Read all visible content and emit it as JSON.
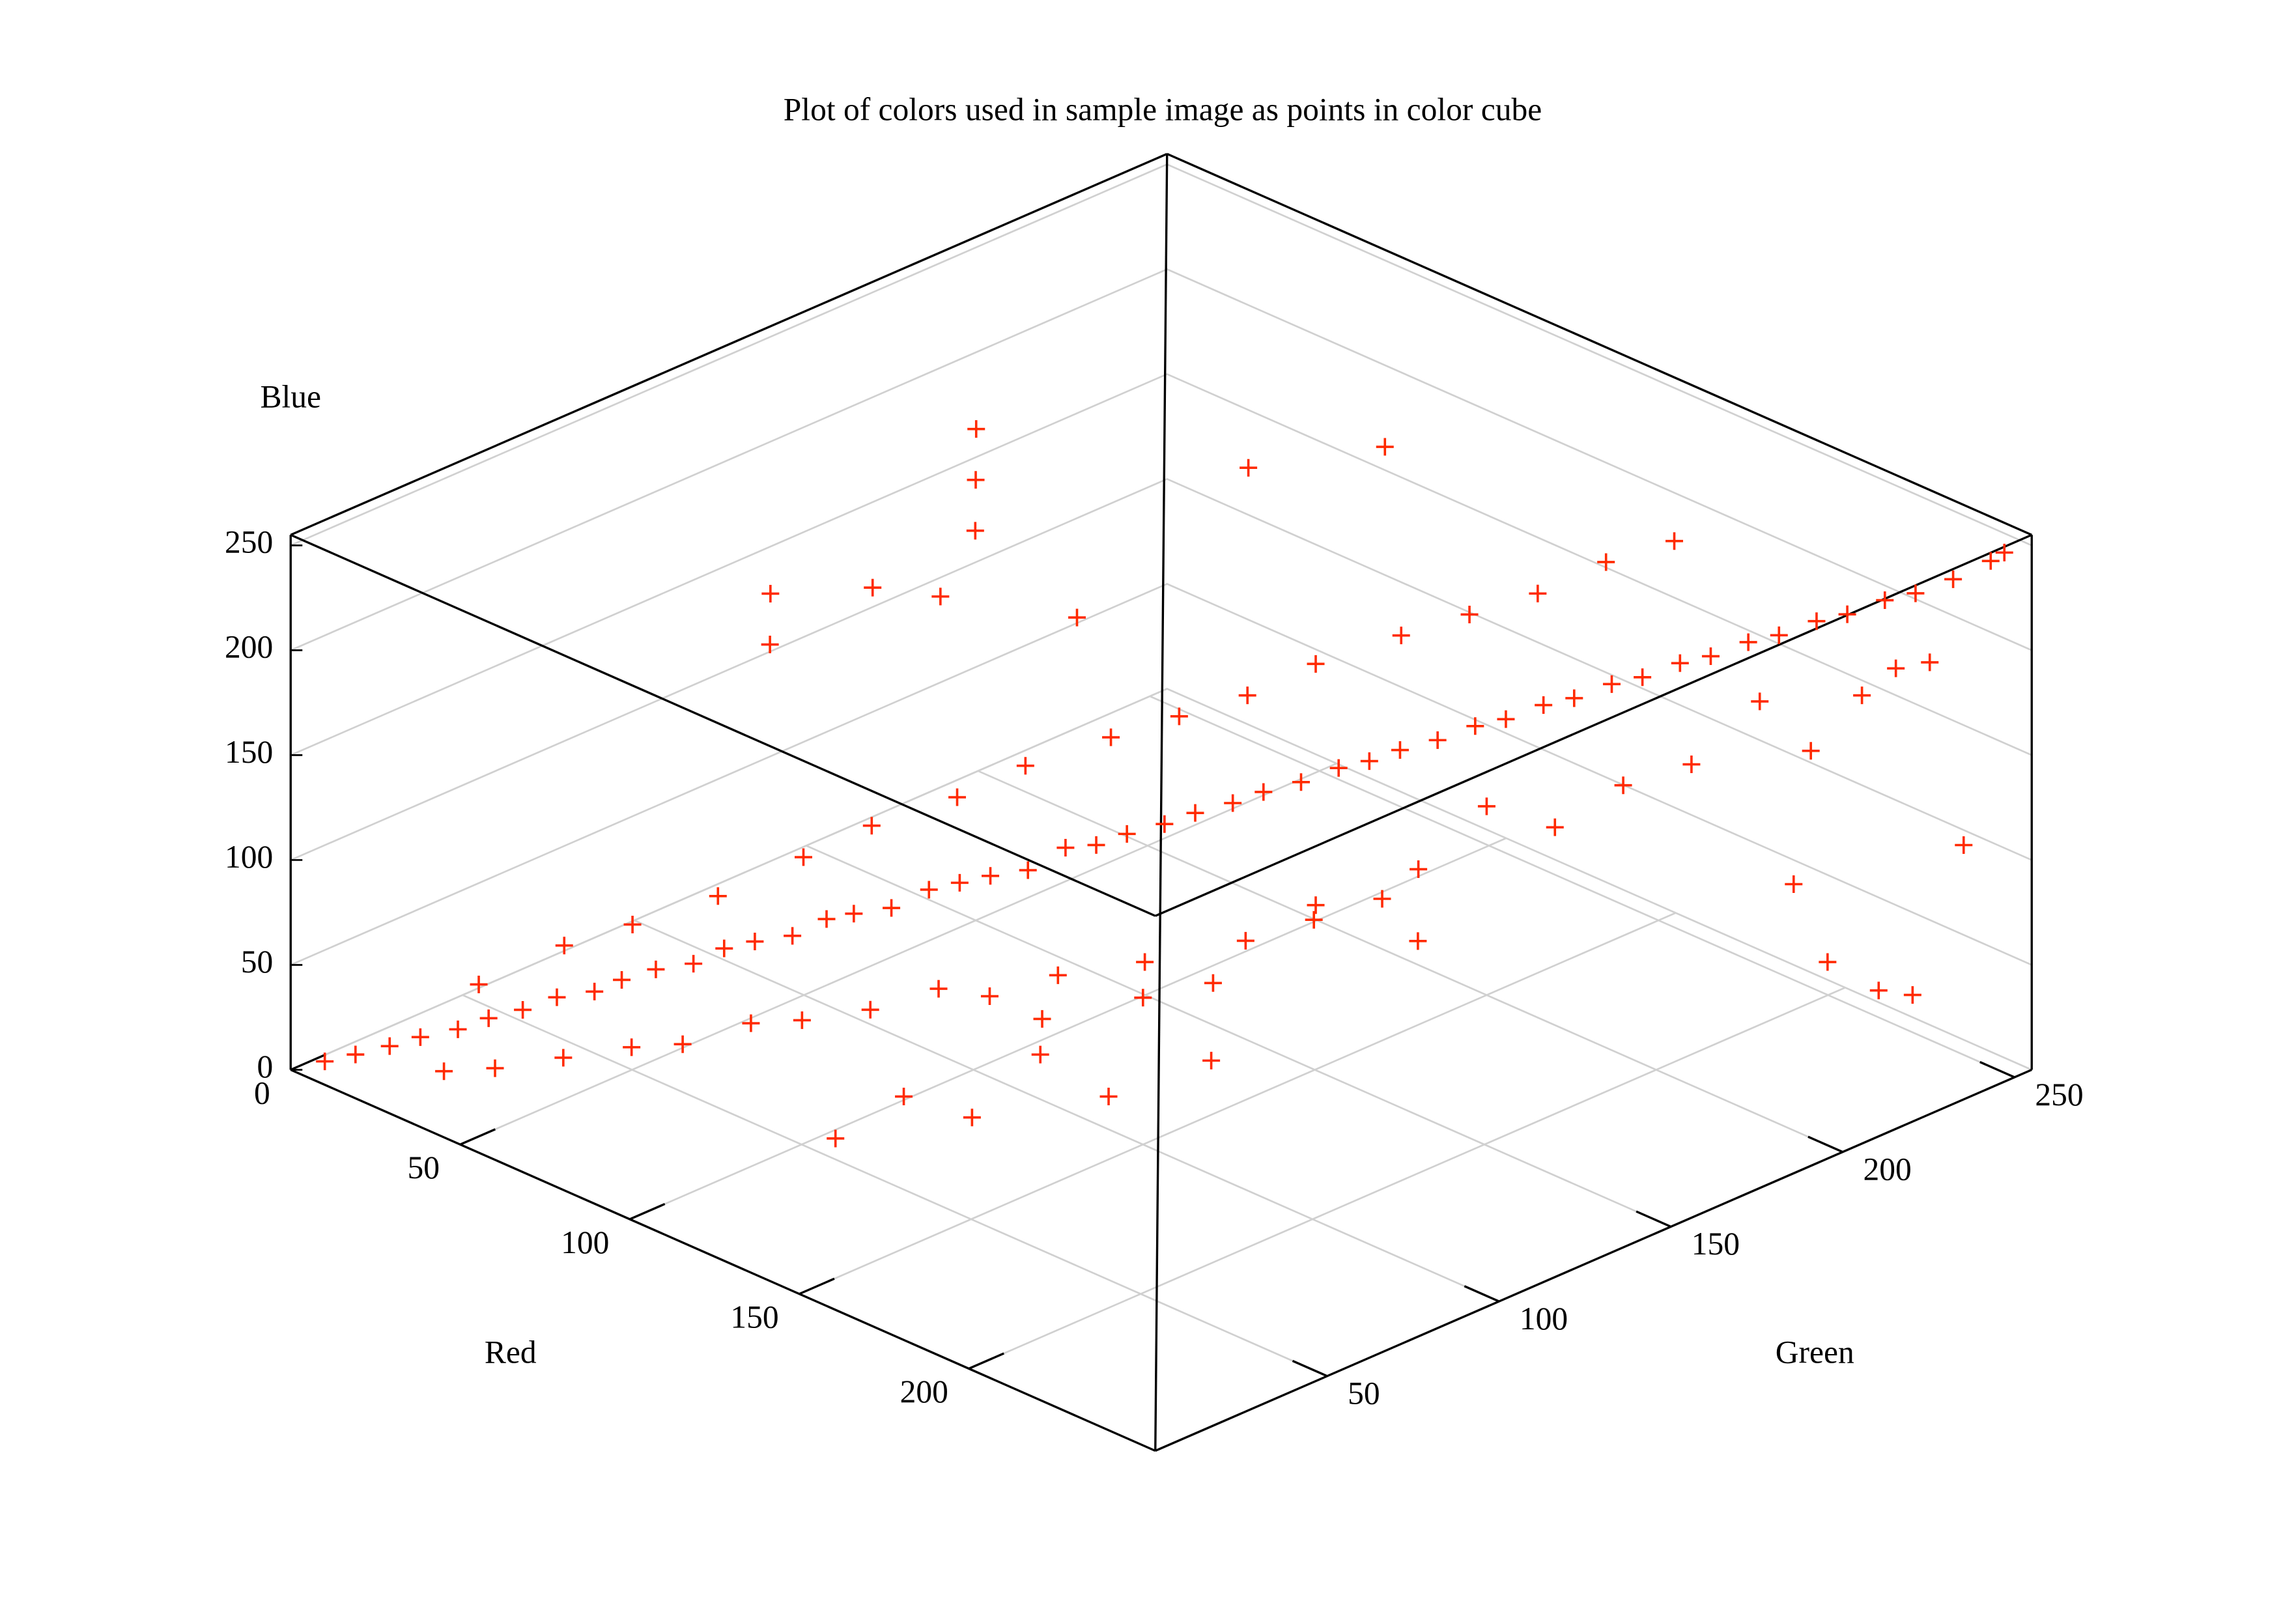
{
  "chart_data": {
    "type": "scatter3d",
    "title": "Plot of colors used in sample image as points in color cube",
    "xlabel": "Red",
    "ylabel": "Green",
    "zlabel": "Blue",
    "xlim": [
      0,
      255
    ],
    "ylim": [
      0,
      255
    ],
    "zlim": [
      0,
      255
    ],
    "xticks": [
      0,
      50,
      100,
      150,
      200
    ],
    "yticks": [
      50,
      100,
      150,
      200,
      250
    ],
    "zticks": [
      0,
      50,
      100,
      150,
      200,
      250
    ],
    "grid": true,
    "series": [
      {
        "color": "#ff2a00",
        "points": [
          [
            5,
            5,
            4
          ],
          [
            10,
            9,
            8
          ],
          [
            15,
            14,
            12
          ],
          [
            20,
            18,
            17
          ],
          [
            25,
            24,
            20
          ],
          [
            30,
            28,
            26
          ],
          [
            35,
            33,
            30
          ],
          [
            40,
            38,
            36
          ],
          [
            45,
            44,
            38
          ],
          [
            50,
            47,
            45
          ],
          [
            55,
            52,
            50
          ],
          [
            60,
            58,
            52
          ],
          [
            65,
            62,
            60
          ],
          [
            70,
            66,
            64
          ],
          [
            75,
            72,
            66
          ],
          [
            80,
            77,
            74
          ],
          [
            85,
            80,
            78
          ],
          [
            90,
            86,
            80
          ],
          [
            95,
            92,
            88
          ],
          [
            100,
            96,
            92
          ],
          [
            105,
            100,
            96
          ],
          [
            110,
            106,
            98
          ],
          [
            115,
            112,
            108
          ],
          [
            120,
            116,
            110
          ],
          [
            125,
            120,
            116
          ],
          [
            130,
            126,
            120
          ],
          [
            135,
            130,
            126
          ],
          [
            140,
            136,
            130
          ],
          [
            145,
            140,
            136
          ],
          [
            150,
            146,
            140
          ],
          [
            155,
            152,
            146
          ],
          [
            160,
            156,
            150
          ],
          [
            165,
            160,
            156
          ],
          [
            170,
            166,
            160
          ],
          [
            175,
            172,
            166
          ],
          [
            180,
            176,
            170
          ],
          [
            185,
            182,
            176
          ],
          [
            190,
            186,
            180
          ],
          [
            195,
            192,
            186
          ],
          [
            200,
            196,
            190
          ],
          [
            205,
            202,
            196
          ],
          [
            210,
            206,
            200
          ],
          [
            215,
            212,
            206
          ],
          [
            220,
            216,
            210
          ],
          [
            225,
            222,
            216
          ],
          [
            230,
            226,
            220
          ],
          [
            235,
            232,
            226
          ],
          [
            240,
            236,
            230
          ],
          [
            245,
            242,
            236
          ],
          [
            250,
            248,
            244
          ],
          [
            252,
            250,
            248
          ],
          [
            30,
            15,
            10
          ],
          [
            40,
            20,
            15
          ],
          [
            50,
            30,
            20
          ],
          [
            60,
            40,
            25
          ],
          [
            70,
            45,
            30
          ],
          [
            80,
            55,
            40
          ],
          [
            90,
            60,
            45
          ],
          [
            100,
            70,
            50
          ],
          [
            110,
            80,
            60
          ],
          [
            120,
            85,
            60
          ],
          [
            130,
            95,
            70
          ],
          [
            20,
            35,
            30
          ],
          [
            30,
            50,
            45
          ],
          [
            40,
            60,
            55
          ],
          [
            50,
            75,
            65
          ],
          [
            60,
            90,
            80
          ],
          [
            70,
            100,
            95
          ],
          [
            80,
            115,
            105
          ],
          [
            90,
            125,
            120
          ],
          [
            100,
            140,
            130
          ],
          [
            110,
            150,
            140
          ],
          [
            120,
            160,
            150
          ],
          [
            130,
            170,
            165
          ],
          [
            140,
            185,
            175
          ],
          [
            150,
            195,
            185
          ],
          [
            160,
            205,
            195
          ],
          [
            170,
            215,
            210
          ],
          [
            180,
            225,
            220
          ],
          [
            150,
            200,
            90
          ],
          [
            160,
            210,
            80
          ],
          [
            170,
            220,
            100
          ],
          [
            180,
            230,
            110
          ],
          [
            140,
            190,
            60
          ],
          [
            190,
            240,
            140
          ],
          [
            200,
            245,
            120
          ],
          [
            210,
            250,
            150
          ],
          [
            220,
            250,
            170
          ],
          [
            230,
            250,
            180
          ],
          [
            150,
            180,
            40
          ],
          [
            130,
            170,
            50
          ],
          [
            200,
            240,
            60
          ],
          [
            210,
            240,
            30
          ],
          [
            220,
            245,
            20
          ],
          [
            230,
            245,
            25
          ],
          [
            240,
            250,
            100
          ],
          [
            120,
            150,
            20
          ],
          [
            100,
            120,
            10
          ],
          [
            110,
            140,
            30
          ],
          [
            140,
            80,
            50
          ],
          [
            150,
            100,
            70
          ],
          [
            160,
            120,
            90
          ],
          [
            170,
            130,
            100
          ],
          [
            180,
            140,
            110
          ],
          [
            120,
            60,
            30
          ],
          [
            130,
            70,
            20
          ],
          [
            110,
            50,
            10
          ],
          [
            150,
            90,
            30
          ],
          [
            160,
            110,
            40
          ],
          [
            40,
            100,
            160
          ],
          [
            50,
            120,
            180
          ],
          [
            30,
            110,
            170
          ],
          [
            60,
            140,
            200
          ],
          [
            50,
            150,
            210
          ],
          [
            40,
            160,
            220
          ],
          [
            70,
            120,
            190
          ],
          [
            90,
            140,
            180
          ],
          [
            100,
            180,
            230
          ],
          [
            120,
            200,
            240
          ]
        ]
      }
    ]
  }
}
